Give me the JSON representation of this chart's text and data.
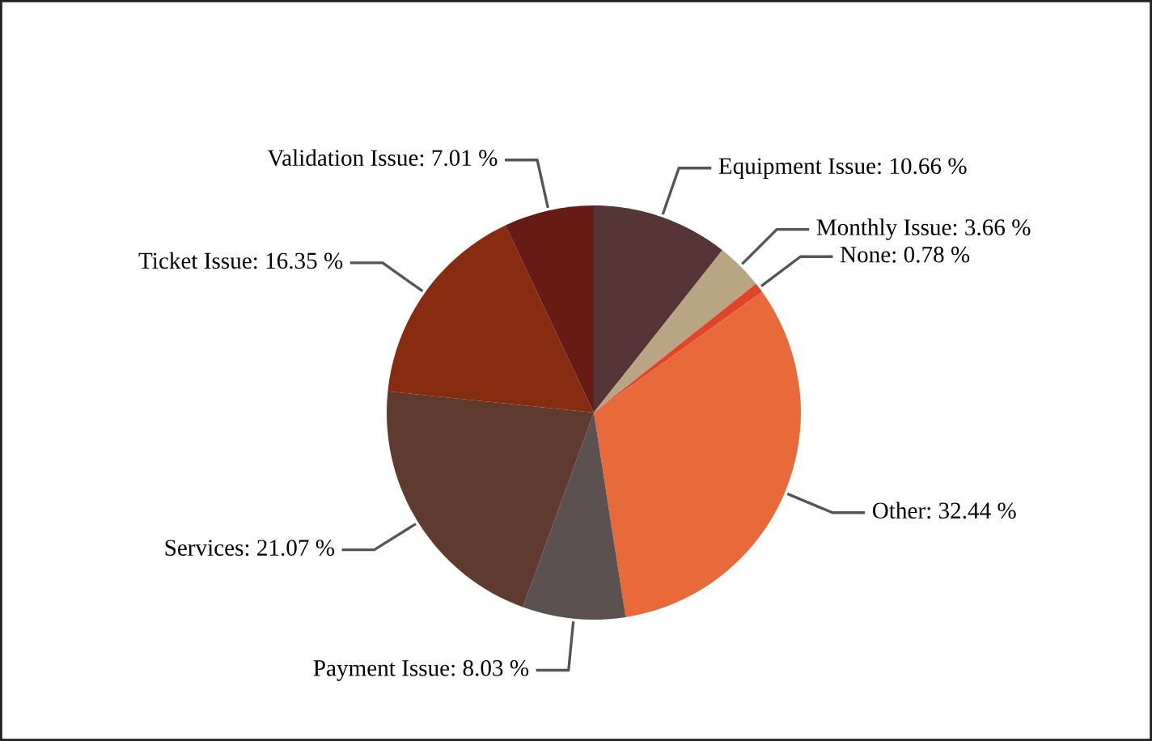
{
  "chart_data": {
    "type": "pie",
    "categories": [
      "Equipment Issue",
      "Monthly Issue",
      "None",
      "Other",
      "Payment Issue",
      "Services",
      "Ticket Issue",
      "Validation Issue"
    ],
    "values": [
      10.66,
      3.66,
      0.78,
      32.44,
      8.03,
      21.07,
      16.35,
      7.01
    ],
    "value_labels": [
      "10.66 %",
      "3.66 %",
      "0.78 %",
      "32.44 %",
      "8.03 %",
      "21.07 %",
      "16.35 %",
      "7.01 %"
    ],
    "colors": [
      "#553535",
      "#b8a584",
      "#e0452a",
      "#e86a3a",
      "#5a5150",
      "#5f3a2f",
      "#872c10",
      "#661c14"
    ],
    "legend": false
  }
}
